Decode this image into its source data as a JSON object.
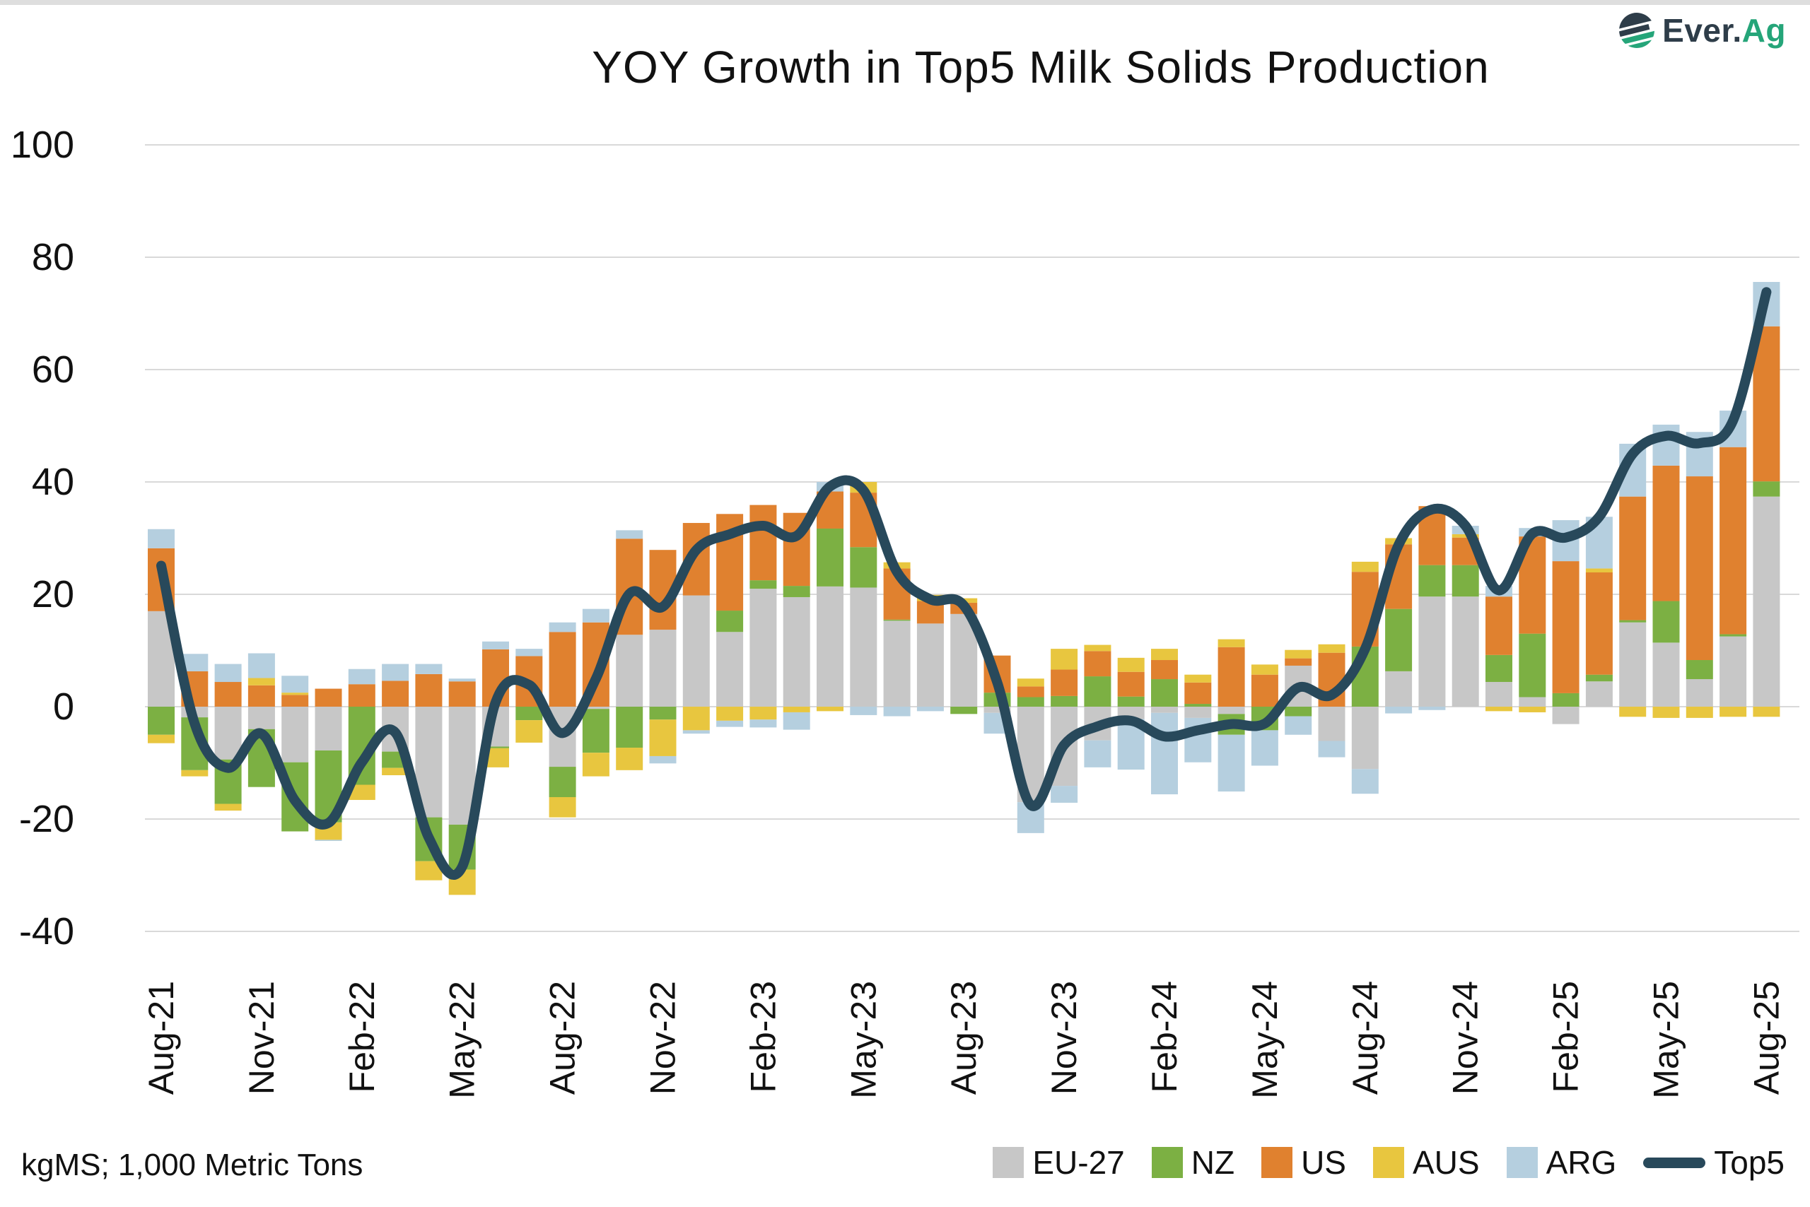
{
  "logo": {
    "text_primary": "Ever.",
    "text_accent": "Ag",
    "primary_color": "#2e3d49",
    "accent_color": "#25a579"
  },
  "chart_data": {
    "type": "bar",
    "subtype": "stacked-bars-with-line-overlay",
    "title": "YOY Growth in Top5 Milk Solids Production",
    "footnote": "kgMS; 1,000 Metric Tons",
    "xlabel": "",
    "ylabel": "",
    "ylim": [
      -40,
      100
    ],
    "yticks": [
      -40,
      -20,
      0,
      20,
      40,
      60,
      80,
      100
    ],
    "grid": true,
    "gridline_color": "#d9d9d9",
    "text_color": "#111111",
    "legend_position": "bottom-right",
    "x_label_every": 3,
    "categories": [
      "Aug-21",
      "Sep-21",
      "Oct-21",
      "Nov-21",
      "Dec-21",
      "Jan-22",
      "Feb-22",
      "Mar-22",
      "Apr-22",
      "May-22",
      "Jun-22",
      "Jul-22",
      "Aug-22",
      "Sep-22",
      "Oct-22",
      "Nov-22",
      "Dec-22",
      "Jan-23",
      "Feb-23",
      "Mar-23",
      "Apr-23",
      "May-23",
      "Jun-23",
      "Jul-23",
      "Aug-23",
      "Sep-23",
      "Oct-23",
      "Nov-23",
      "Dec-23",
      "Jan-24",
      "Feb-24",
      "Mar-24",
      "Apr-24",
      "May-24",
      "Jun-24",
      "Jul-24",
      "Aug-24",
      "Sep-24",
      "Oct-24",
      "Nov-24",
      "Dec-24",
      "Jan-25",
      "Feb-25",
      "Mar-25",
      "Apr-25",
      "May-25",
      "Jun-25",
      "Jul-25",
      "Aug-25"
    ],
    "series": [
      {
        "name": "EU-27",
        "type": "bar",
        "color": "#c7c7c7",
        "values": [
          17,
          -1.9,
          -9.4,
          -4,
          -9.9,
          -7.8,
          0,
          -8,
          -19.7,
          -21,
          -7.1,
          0,
          -10.7,
          -0.4,
          12.8,
          13.7,
          19.8,
          13.3,
          21,
          19.5,
          21.4,
          21.2,
          15.3,
          14.8,
          16.5,
          -1.1,
          -17,
          -14.1,
          -6,
          -2.2,
          -1.1,
          -2,
          -1.3,
          0,
          7.3,
          -6.1,
          -11.1,
          6.3,
          19.6,
          19.6,
          4.4,
          1.7,
          -3.1,
          4.5,
          15,
          11.4,
          4.9,
          12.5,
          37.4
        ]
      },
      {
        "name": "NZ",
        "type": "bar",
        "color": "#7cb043",
        "values": [
          -5,
          -9.4,
          -7.9,
          -10.3,
          -12.3,
          -12.8,
          -13.9,
          -2.9,
          -7.8,
          -8,
          -0.3,
          -2.4,
          -5.4,
          -7.8,
          -7.3,
          -2.3,
          0,
          3.8,
          1.5,
          2,
          10.3,
          7.2,
          0.2,
          0,
          -1.3,
          2.5,
          1.7,
          1.9,
          5.4,
          1.8,
          4.9,
          0.5,
          -3.7,
          -4.2,
          -1.7,
          0,
          10.7,
          11.1,
          5.6,
          5.6,
          4.8,
          11.3,
          2.4,
          1.2,
          0.4,
          7.4,
          3.4,
          0.4,
          2.7
        ]
      },
      {
        "name": "US",
        "type": "bar",
        "color": "#e0812f",
        "values": [
          11.2,
          6.3,
          4.4,
          3.8,
          2.1,
          3.2,
          4,
          4.6,
          5.8,
          4.5,
          10.2,
          9,
          13.3,
          15,
          17.1,
          14.2,
          12.9,
          17.2,
          13.4,
          13,
          6.6,
          9.7,
          9.1,
          4,
          2,
          6.6,
          1.9,
          4.7,
          4.5,
          4.4,
          3.4,
          3.8,
          10.6,
          5.7,
          1.3,
          9.6,
          13.3,
          11.5,
          10.5,
          4.9,
          10.4,
          17.3,
          23.5,
          18.2,
          22,
          24.1,
          32.7,
          33.3,
          27.6
        ]
      },
      {
        "name": "AUS",
        "type": "bar",
        "color": "#e8c63f",
        "values": [
          -1.5,
          -1.1,
          -1.2,
          1.3,
          0.4,
          -3.1,
          -2.7,
          -1.3,
          -3.4,
          -4.5,
          -3.4,
          -4,
          -3.6,
          -4.2,
          -4,
          -6.5,
          -4.2,
          -2.5,
          -2.3,
          -1,
          -0.8,
          1.9,
          1.1,
          1.1,
          0.8,
          0,
          1.4,
          3.7,
          1.1,
          2.5,
          2,
          1.4,
          1.4,
          1.8,
          1.5,
          1.5,
          1.8,
          1.1,
          0,
          0.6,
          -0.8,
          -1,
          0,
          0.7,
          -1.8,
          -2,
          -2,
          -1.8,
          -1.8
        ]
      },
      {
        "name": "ARG",
        "type": "bar",
        "color": "#b5cfdf",
        "values": [
          3.4,
          3.1,
          3.2,
          4.4,
          3,
          -0.2,
          2.7,
          3,
          1.8,
          0.5,
          1.4,
          1.3,
          1.7,
          2.4,
          1.5,
          -1.3,
          -0.6,
          -1.1,
          -1.4,
          -3.1,
          1.7,
          -1.5,
          -1.7,
          -0.8,
          0,
          -3.7,
          -5.5,
          -3,
          -4.8,
          -9,
          -14.5,
          -7.9,
          -10.1,
          -6.3,
          -3.3,
          -2.9,
          -4.4,
          -1.2,
          -0.6,
          1.5,
          1.9,
          1.5,
          7.3,
          9.2,
          9.4,
          7.3,
          7.9,
          6.5,
          7.9
        ]
      },
      {
        "name": "Top5",
        "type": "line",
        "color": "#28495b",
        "values": [
          25.1,
          -3,
          -10.9,
          -4.8,
          -16.7,
          -20.7,
          -9.9,
          -4.6,
          -23.3,
          -28.5,
          0.8,
          3.9,
          -4.7,
          5,
          20.1,
          17.8,
          27.9,
          30.7,
          32.2,
          30.4,
          39.2,
          38.5,
          24,
          19.1,
          18,
          4.3,
          -17.5,
          -6.8,
          -3.5,
          -2.5,
          -5.3,
          -4.2,
          -3.1,
          -3,
          3.4,
          2.1,
          10.3,
          28.8,
          35.1,
          32.2,
          20.7,
          30.8,
          30.1,
          33.8,
          45,
          48.2,
          46.9,
          50.9,
          73.8
        ]
      }
    ]
  }
}
